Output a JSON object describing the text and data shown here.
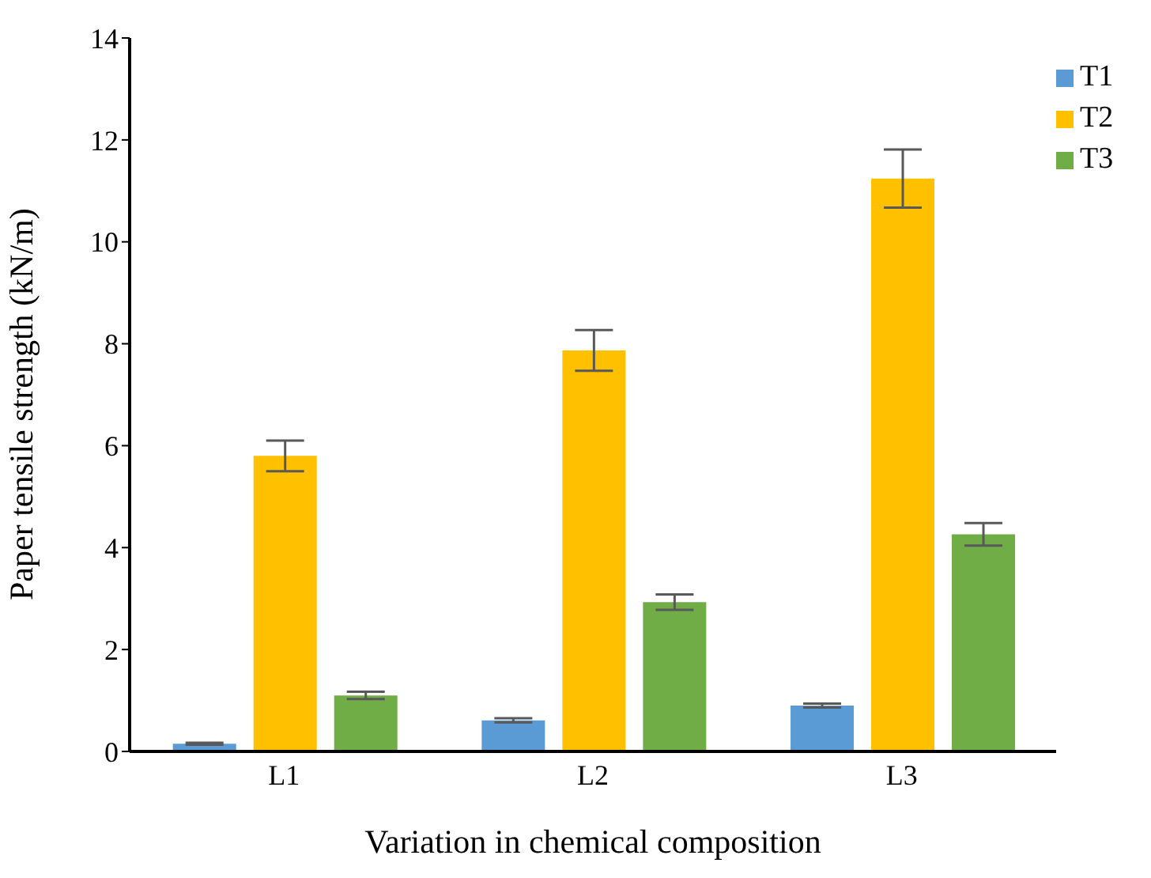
{
  "chart_data": {
    "type": "bar",
    "xlabel": "Variation in chemical composition",
    "ylabel": "Paper tensile strength (kN/m)",
    "categories": [
      "L1",
      "L2",
      "L3"
    ],
    "series": [
      {
        "name": "T1",
        "color": "#5b9bd5",
        "values": [
          0.15,
          0.61,
          0.9
        ],
        "errors": [
          0.02,
          0.04,
          0.04
        ]
      },
      {
        "name": "T2",
        "color": "#ffc000",
        "values": [
          5.8,
          7.87,
          11.24
        ],
        "errors": [
          0.3,
          0.4,
          0.57
        ]
      },
      {
        "name": "T3",
        "color": "#70ad47",
        "values": [
          1.1,
          2.93,
          4.26
        ],
        "errors": [
          0.07,
          0.15,
          0.22
        ]
      }
    ],
    "ylim": [
      0,
      14
    ],
    "yticks": [
      0,
      2,
      4,
      6,
      8,
      10,
      12,
      14
    ],
    "grid": false,
    "legend": "top right"
  }
}
